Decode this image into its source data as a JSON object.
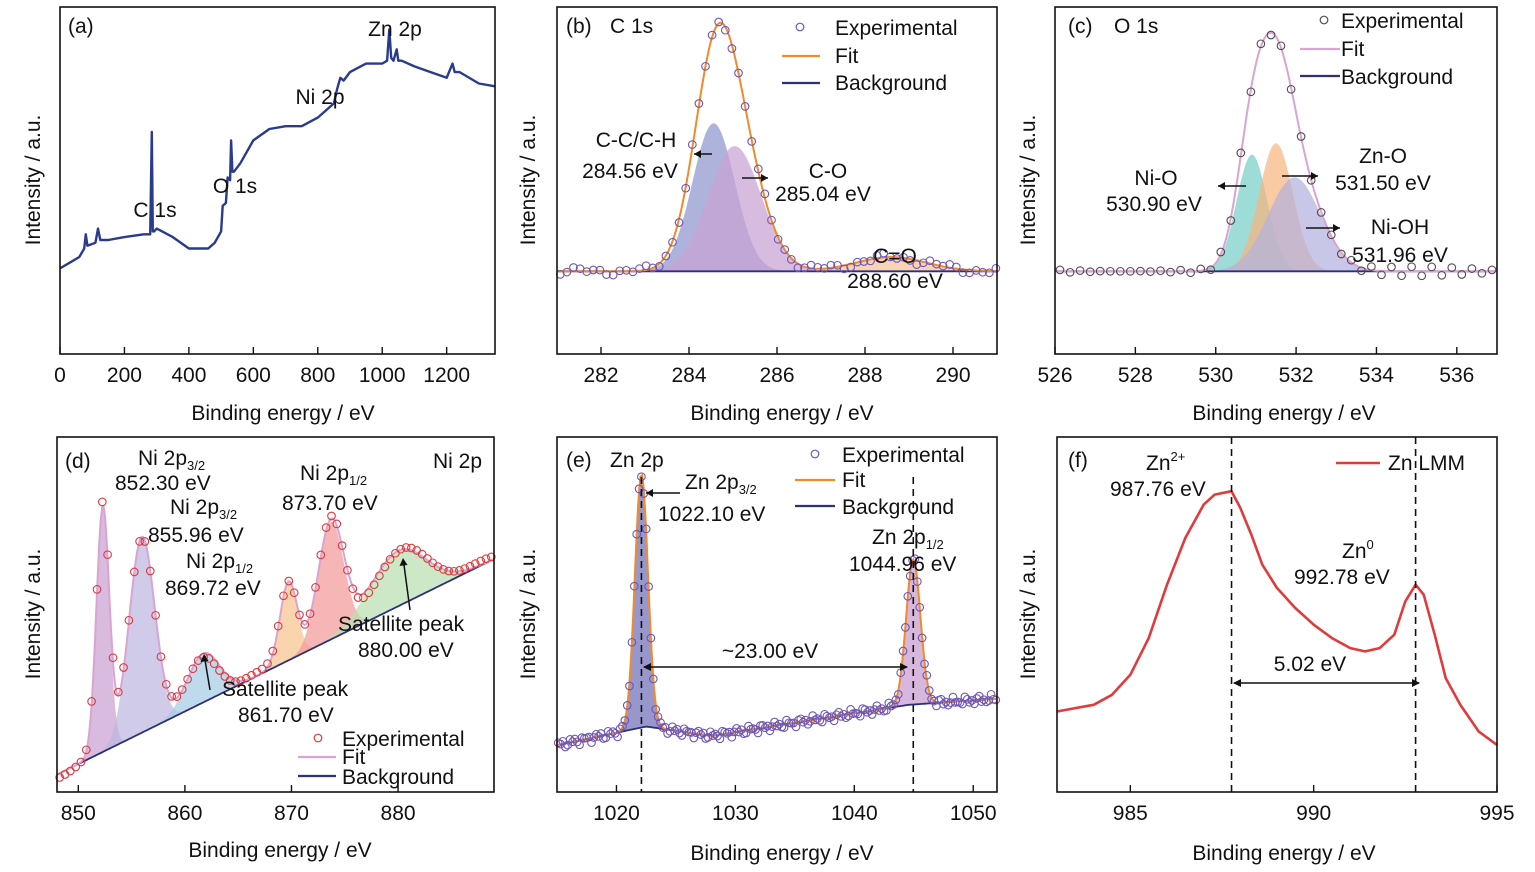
{
  "figure": {
    "colors": {
      "frame": "#111111",
      "survey_line": "#2a3a8c",
      "exp_marker_blue": "#6f56b5",
      "exp_marker_red": "#e03a3a",
      "exp_marker_dark": "#5a4a4a",
      "fit_orange": "#f08a2a",
      "fit_pink": "#d9a4d4",
      "background_navy": "#2c2f7a",
      "zn_lmm_red": "#e23a3a"
    }
  },
  "chart_data": [
    {
      "id": "a",
      "type": "line",
      "panel_label": "(a)",
      "title": "",
      "xlabel": "Binding energy / eV",
      "ylabel": "Intensity / a.u.",
      "xlim": [
        0,
        1350
      ],
      "ylim": [
        0,
        1
      ],
      "xticks": [
        0,
        200,
        400,
        600,
        800,
        1000,
        1200
      ],
      "series": [
        {
          "x": [
            0,
            30,
            60,
            75,
            80,
            85,
            110,
            118,
            125,
            150,
            200,
            260,
            280,
            285,
            288,
            292,
            300,
            350,
            400,
            460,
            480,
            500,
            505,
            515,
            520,
            528,
            531,
            535,
            540,
            560,
            600,
            650,
            700,
            750,
            800,
            850,
            860,
            870,
            880,
            900,
            950,
            1000,
            1015,
            1022,
            1028,
            1035,
            1045,
            1050,
            1060,
            1100,
            1150,
            1200,
            1218,
            1225,
            1240,
            1300,
            1350
          ],
          "y": [
            0.13,
            0.15,
            0.17,
            0.2,
            0.25,
            0.21,
            0.22,
            0.27,
            0.23,
            0.23,
            0.24,
            0.25,
            0.25,
            0.61,
            0.26,
            0.26,
            0.27,
            0.24,
            0.2,
            0.2,
            0.22,
            0.26,
            0.35,
            0.36,
            0.45,
            0.44,
            0.58,
            0.47,
            0.47,
            0.5,
            0.58,
            0.62,
            0.63,
            0.63,
            0.66,
            0.71,
            0.76,
            0.8,
            0.79,
            0.82,
            0.85,
            0.85,
            0.86,
            0.97,
            0.87,
            0.86,
            0.9,
            0.86,
            0.86,
            0.84,
            0.82,
            0.8,
            0.85,
            0.82,
            0.82,
            0.78,
            0.77
          ]
        }
      ],
      "annotations": [
        {
          "text": "C 1s",
          "x": 285
        },
        {
          "text": "O 1s",
          "x": 531
        },
        {
          "text": "Ni 2p",
          "x": 860
        },
        {
          "text": "Zn 2p",
          "x": 1022
        }
      ]
    },
    {
      "id": "b",
      "type": "line",
      "panel_label": "(b)",
      "title": "C 1s",
      "xlabel": "Binding energy / eV",
      "ylabel": "Intensity / a.u.",
      "xlim": [
        281,
        291
      ],
      "ylim": [
        0,
        1
      ],
      "xticks": [
        282,
        284,
        286,
        288,
        290
      ],
      "legend": [
        "Experimental",
        "Fit",
        "Background"
      ],
      "baseline": 0.12,
      "components": [
        {
          "name": "C-C/C-H",
          "center": 284.56,
          "amp": 0.52,
          "sigma": 0.48,
          "color": "#8f95cf"
        },
        {
          "name": "C-O",
          "center": 285.04,
          "amp": 0.44,
          "sigma": 0.6,
          "color": "#c7a2d4"
        },
        {
          "name": "C=O",
          "center": 288.6,
          "amp": 0.05,
          "sigma": 0.8,
          "color": "#f5c49a"
        }
      ],
      "peak_labels": [
        {
          "name": "C-C/C-H",
          "energy": "284.56 eV",
          "center": 284.56
        },
        {
          "name": "C-O",
          "energy": "285.04 eV",
          "center": 285.04
        },
        {
          "name": "C=O",
          "energy": "288.60 eV",
          "center": 288.6
        }
      ],
      "exp_step": 0.15
    },
    {
      "id": "c",
      "type": "line",
      "panel_label": "(c)",
      "title": "O 1s",
      "xlabel": "Binding energy / eV",
      "ylabel": "Intensity / a.u.",
      "xlim": [
        526,
        537
      ],
      "ylim": [
        0,
        1
      ],
      "xticks": [
        526,
        528,
        530,
        532,
        534,
        536
      ],
      "legend": [
        "Experimental",
        "Fit",
        "Background"
      ],
      "baseline": 0.12,
      "components": [
        {
          "name": "Ni-O",
          "center": 530.9,
          "amp": 0.41,
          "sigma": 0.38,
          "color": "#78cfc9"
        },
        {
          "name": "Zn-O",
          "center": 531.5,
          "amp": 0.45,
          "sigma": 0.42,
          "color": "#f6b57f"
        },
        {
          "name": "Ni-OH",
          "center": 531.96,
          "amp": 0.33,
          "sigma": 0.65,
          "color": "#b3b2de"
        }
      ],
      "peak_labels": [
        {
          "name": "Ni-O",
          "energy": "530.90 eV",
          "center": 530.9
        },
        {
          "name": "Zn-O",
          "energy": "531.50 eV",
          "center": 531.5
        },
        {
          "name": "Ni-OH",
          "energy": "531.96 eV",
          "center": 531.96
        }
      ],
      "exp_step": 0.25
    },
    {
      "id": "d",
      "type": "line",
      "panel_label": "(d)",
      "title": "Ni 2p",
      "xlabel": "Binding energy / eV",
      "ylabel": "Intensity / a.u.",
      "xlim": [
        848,
        889
      ],
      "ylim": [
        0,
        1
      ],
      "xticks": [
        850,
        860,
        870,
        880
      ],
      "legend": [
        "Experimental",
        "Fit",
        "Background"
      ],
      "background_line": [
        [
          848,
          0.01
        ],
        [
          889,
          0.67
        ]
      ],
      "components": [
        {
          "name": "Ni 2p3/2 852.30",
          "center": 852.3,
          "amp": 0.75,
          "sigma": 0.6,
          "color": "#c9a1d1"
        },
        {
          "name": "Ni 2p3/2 855.96",
          "center": 855.96,
          "amp": 0.6,
          "sigma": 1.2,
          "color": "#bdb7e0"
        },
        {
          "name": "Satellite 861.70",
          "center": 861.7,
          "amp": 0.15,
          "sigma": 1.5,
          "color": "#a6cce6"
        },
        {
          "name": "Ni 2p1/2 869.72",
          "center": 869.72,
          "amp": 0.24,
          "sigma": 0.8,
          "color": "#f7c48e"
        },
        {
          "name": "Ni 2p1/2 873.70",
          "center": 873.7,
          "amp": 0.36,
          "sigma": 1.2,
          "color": "#f49a9a"
        },
        {
          "name": "Satellite 880.00",
          "center": 880.0,
          "amp": 0.17,
          "sigma": 2.6,
          "color": "#b9dfb1"
        }
      ],
      "peak_labels": [
        {
          "line": "Ni 2p",
          "sub": "3/2",
          "energy": "852.30 eV",
          "center": 852.3
        },
        {
          "line": "Ni 2p",
          "sub": "3/2",
          "energy": "855.96 eV",
          "center": 855.96
        },
        {
          "line": "Ni 2p",
          "sub": "1/2",
          "energy": "869.72 eV",
          "center": 869.72
        },
        {
          "line": "Ni 2p",
          "sub": "1/2",
          "energy": "873.70 eV",
          "center": 873.7
        },
        {
          "line": "Satellite peak",
          "sub": "",
          "energy": "861.70 eV",
          "center": 861.7
        },
        {
          "line": "Satellite peak",
          "sub": "",
          "energy": "880.00 eV",
          "center": 880.0
        }
      ],
      "exp_step": 0.5
    },
    {
      "id": "e",
      "type": "line",
      "panel_label": "(e)",
      "title": "Zn 2p",
      "xlabel": "Binding energy / eV",
      "ylabel": "Intensity / a.u.",
      "xlim": [
        1015,
        1052
      ],
      "ylim": [
        0,
        1
      ],
      "xticks": [
        1020,
        1030,
        1040,
        1050
      ],
      "legend": [
        "Experimental",
        "Fit",
        "Background"
      ],
      "background_line": [
        [
          1015,
          0.06
        ],
        [
          1022.5,
          0.12
        ],
        [
          1028,
          0.09
        ],
        [
          1044.5,
          0.19
        ],
        [
          1052,
          0.21
        ]
      ],
      "components": [
        {
          "name": "Zn 2p3/2",
          "center": 1022.1,
          "amp": 0.82,
          "sigma": 0.55,
          "color": "#6f6fb8"
        },
        {
          "name": "Zn 2p1/2",
          "center": 1044.96,
          "amp": 0.47,
          "sigma": 0.6,
          "color": "#c79bcd"
        }
      ],
      "peak_labels": [
        {
          "line": "Zn 2p",
          "sub": "3/2",
          "energy": "1022.10 eV",
          "center": 1022.1
        },
        {
          "line": "Zn 2p",
          "sub": "1/2",
          "energy": "1044.96 eV",
          "center": 1044.96
        }
      ],
      "splitting": "~23.00 eV",
      "exp_step": 0.2
    },
    {
      "id": "f",
      "type": "line",
      "panel_label": "(f)",
      "title": "",
      "xlabel": "Binding energy / eV",
      "ylabel": "Intensity / a.u.",
      "xlim": [
        983,
        995
      ],
      "ylim": [
        0,
        1
      ],
      "xticks": [
        985,
        990,
        995
      ],
      "legend": [
        "Zn LMM"
      ],
      "series": [
        {
          "name": "Zn LMM",
          "x": [
            983,
            983.5,
            984,
            984.5,
            985,
            985.5,
            986,
            986.5,
            987,
            987.3,
            987.76,
            988,
            988.3,
            988.6,
            989,
            989.5,
            990,
            990.5,
            991,
            991.4,
            991.8,
            992.2,
            992.5,
            992.78,
            993,
            993.3,
            993.6,
            994,
            994.5,
            995
          ],
          "y": [
            0.22,
            0.23,
            0.24,
            0.27,
            0.33,
            0.44,
            0.6,
            0.74,
            0.84,
            0.87,
            0.88,
            0.83,
            0.75,
            0.66,
            0.59,
            0.53,
            0.48,
            0.44,
            0.41,
            0.4,
            0.41,
            0.45,
            0.55,
            0.6,
            0.57,
            0.45,
            0.32,
            0.24,
            0.16,
            0.12
          ]
        }
      ],
      "peak_labels": [
        {
          "line": "Zn",
          "sup": "2+",
          "energy": "987.76 eV",
          "center": 987.76
        },
        {
          "line": "Zn",
          "sup": "0",
          "energy": "992.78 eV",
          "center": 992.78
        }
      ],
      "splitting": "5.02 eV"
    }
  ]
}
